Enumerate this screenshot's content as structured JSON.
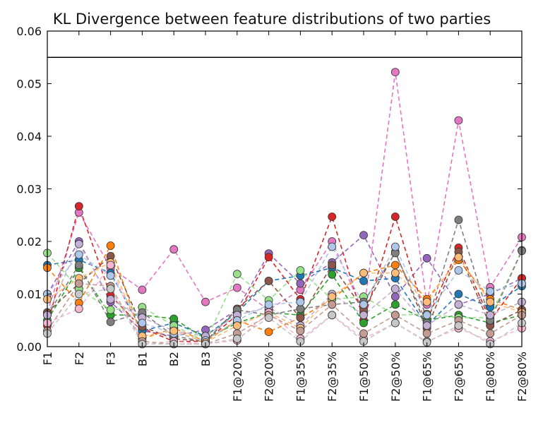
{
  "chart_data": {
    "type": "line",
    "title": "KL Divergence between feature distributions of two parties",
    "xlabel": "",
    "ylabel": "",
    "categories": [
      "F1",
      "F2",
      "F3",
      "B1",
      "B2",
      "B3",
      "F1@20%",
      "F2@20%",
      "F1@35%",
      "F2@35%",
      "F1@50%",
      "F2@50%",
      "F1@65%",
      "F2@65%",
      "F1@80%",
      "F2@80%"
    ],
    "ylim": [
      0,
      0.06
    ],
    "yticks": [
      "0.00",
      "0.01",
      "0.02",
      "0.03",
      "0.04",
      "0.05",
      "0.06"
    ],
    "grid": false,
    "legend": "none",
    "line_style": "dashed",
    "reference_line": 0.055,
    "series": [
      {
        "color": "#e377c2",
        "values": [
          0.0065,
          0.0255,
          0.015,
          0.0108,
          0.0185,
          0.0085,
          0.0112,
          0.007,
          0.0108,
          0.02,
          0.0065,
          0.0522,
          0.008,
          0.043,
          0.0113,
          0.0208
        ]
      },
      {
        "color": "#9467bd",
        "values": [
          0.01,
          0.02,
          0.0085,
          0.003,
          0.002,
          0.0032,
          0.007,
          0.0177,
          0.012,
          0.016,
          0.0212,
          0.0095,
          0.0168,
          0.008,
          0.01,
          0.013
        ]
      },
      {
        "color": "#d62728",
        "values": [
          0.004,
          0.0267,
          0.0097,
          0.0035,
          0.001,
          0.001,
          0.006,
          0.017,
          0.009,
          0.0247,
          0.005,
          0.0247,
          0.005,
          0.0188,
          0.005,
          0.013
        ]
      },
      {
        "color": "#1f77b4",
        "values": [
          0.0155,
          0.0165,
          0.014,
          0.003,
          0.0045,
          0.002,
          0.0065,
          0.0125,
          0.0135,
          0.015,
          0.0125,
          0.013,
          0.004,
          0.01,
          0.0075,
          0.0115
        ]
      },
      {
        "color": "#ff7f0e",
        "values": [
          0.015,
          0.0083,
          0.0192,
          0.0015,
          0.0035,
          0.001,
          0.005,
          0.0028,
          0.0055,
          0.009,
          0.014,
          0.0155,
          0.009,
          0.0165,
          0.009,
          0.007
        ]
      },
      {
        "color": "#2ca02c",
        "values": [
          0.005,
          0.015,
          0.006,
          0.006,
          0.0053,
          0.0015,
          0.0045,
          0.0065,
          0.006,
          0.0137,
          0.0045,
          0.008,
          0.005,
          0.006,
          0.0045,
          0.006
        ]
      },
      {
        "color": "#98df8a",
        "values": [
          0.0178,
          0.011,
          0.007,
          0.0075,
          0.004,
          0.001,
          0.0138,
          0.0088,
          0.0145,
          0.009,
          0.0095,
          0.006,
          0.0062,
          0.0055,
          0.0055,
          0.0183
        ]
      },
      {
        "color": "#8c564b",
        "values": [
          0.0065,
          0.012,
          0.0172,
          0.0038,
          0.0015,
          0.001,
          0.0072,
          0.0125,
          0.0055,
          0.0155,
          0.007,
          0.018,
          0.0035,
          0.018,
          0.004,
          0.007
        ]
      },
      {
        "color": "#7f7f7f",
        "values": [
          0.006,
          0.0155,
          0.0047,
          0.0065,
          0.002,
          0.001,
          0.007,
          0.006,
          0.0072,
          0.008,
          0.0085,
          0.0178,
          0.0045,
          0.0241,
          0.005,
          0.0182
        ]
      },
      {
        "color": "#c5b0d5",
        "values": [
          0.006,
          0.0195,
          0.009,
          0.0055,
          0.003,
          0.002,
          0.006,
          0.0075,
          0.004,
          0.01,
          0.006,
          0.011,
          0.004,
          0.008,
          0.006,
          0.0085
        ]
      },
      {
        "color": "#aec7e8",
        "values": [
          0.01,
          0.0175,
          0.0135,
          0.0045,
          0.0025,
          0.0012,
          0.005,
          0.008,
          0.0085,
          0.019,
          0.008,
          0.019,
          0.006,
          0.0145,
          0.0105,
          0.012
        ]
      },
      {
        "color": "#ffbb78",
        "values": [
          0.009,
          0.013,
          0.016,
          0.002,
          0.003,
          0.0008,
          0.004,
          0.0065,
          0.0035,
          0.0095,
          0.014,
          0.014,
          0.0085,
          0.017,
          0.0085,
          0.0065
        ]
      },
      {
        "color": "#f7b6d2",
        "values": [
          0.0045,
          0.0072,
          0.0155,
          0.0005,
          0.001,
          0.0005,
          0.0012,
          0.0065,
          0.0015,
          0.006,
          0.0015,
          0.0045,
          0.001,
          0.0035,
          0.001,
          0.0035
        ]
      },
      {
        "color": "#c49c94",
        "values": [
          0.003,
          0.012,
          0.0115,
          0.001,
          0.0005,
          0.0005,
          0.0025,
          0.006,
          0.003,
          0.008,
          0.0025,
          0.006,
          0.0025,
          0.005,
          0.0025,
          0.006
        ]
      },
      {
        "color": "#c7c7c7",
        "values": [
          0.0025,
          0.01,
          0.011,
          0.0005,
          0.0005,
          0.0005,
          0.0015,
          0.0055,
          0.001,
          0.006,
          0.001,
          0.0045,
          0.0008,
          0.004,
          0.0005,
          0.0045
        ]
      }
    ]
  }
}
